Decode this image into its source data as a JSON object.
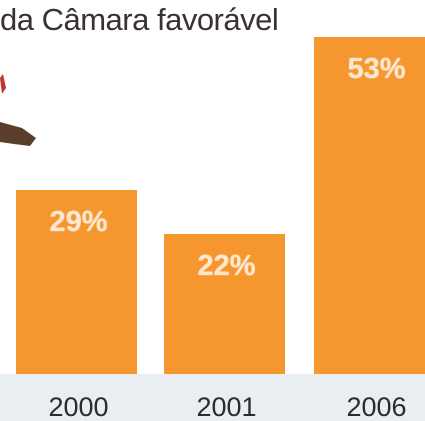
{
  "title": "da Câmara favorável",
  "colors": {
    "bar": "#f6962e",
    "label": "#ffe7cf",
    "band": "#e9eef0"
  },
  "chart_data": {
    "type": "bar",
    "title": "da Câmara favorável",
    "categories": [
      "2000",
      "2001",
      "2006"
    ],
    "values": [
      29,
      22,
      53
    ],
    "value_labels": [
      "29%",
      "22%",
      "53%"
    ],
    "unit": "%",
    "ylim": [
      0,
      57
    ],
    "grid": false,
    "legend": "none"
  }
}
